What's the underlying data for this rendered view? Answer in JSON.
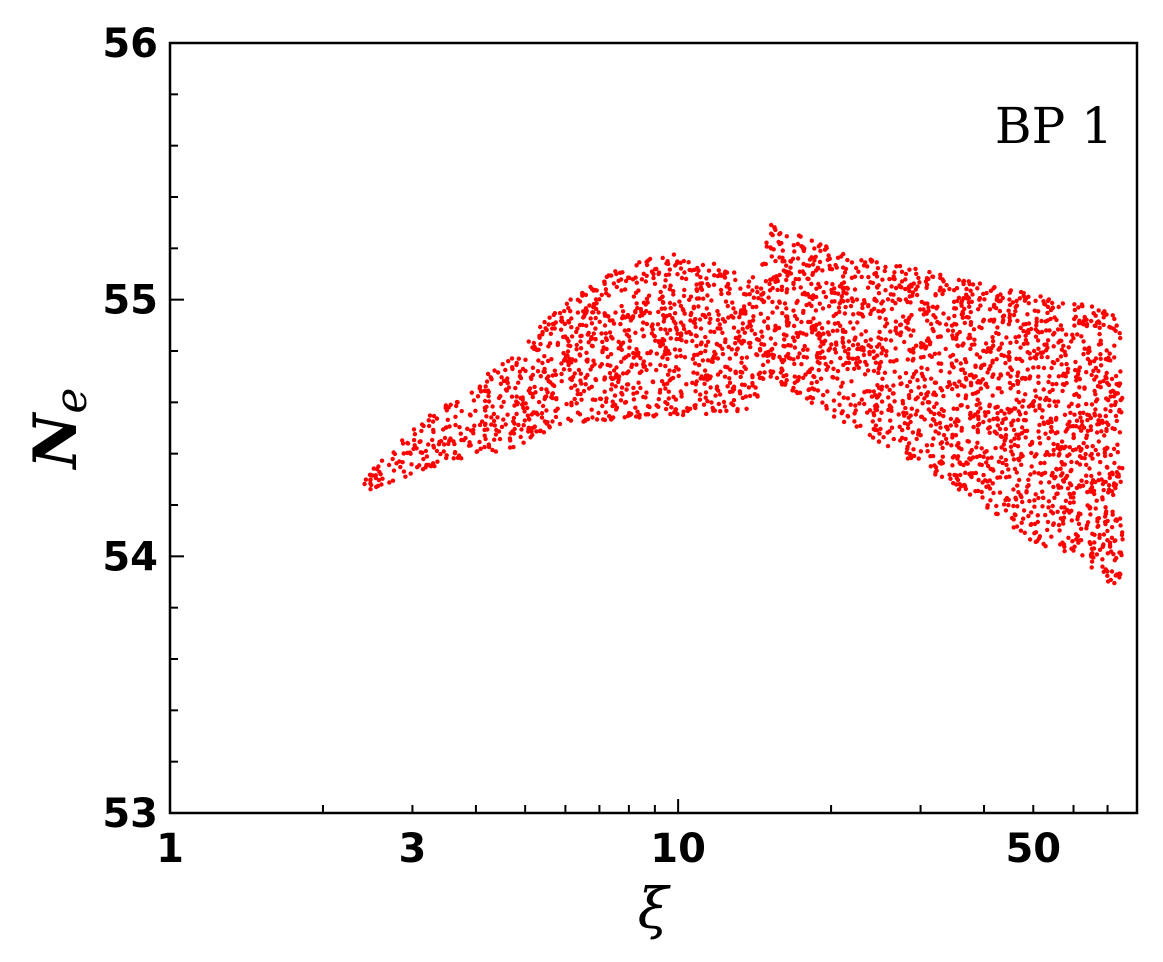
{
  "chart_data": {
    "type": "scatter",
    "annotation": "BP 1",
    "xlabel": "ξ",
    "ylabel": "N",
    "ylabel_sub": "e",
    "xscale": "log",
    "xlim": [
      1,
      80
    ],
    "ylim": [
      53,
      56
    ],
    "xticks": [
      {
        "value": 1,
        "label": "1"
      },
      {
        "value": 3,
        "label": "3"
      },
      {
        "value": 10,
        "label": "10"
      },
      {
        "value": 50,
        "label": "50"
      }
    ],
    "yticks": [
      {
        "value": 53,
        "label": "53"
      },
      {
        "value": 54,
        "label": "54"
      },
      {
        "value": 55,
        "label": "55"
      },
      {
        "value": 56,
        "label": "56"
      }
    ],
    "grid": false,
    "marker_color": "#ff0000",
    "region_boundary": [
      [
        2.4,
        54.3
      ],
      [
        3.0,
        54.5
      ],
      [
        4.5,
        54.75
      ],
      [
        6.0,
        55.0
      ],
      [
        8.0,
        55.15
      ],
      [
        10.0,
        55.18
      ],
      [
        14.0,
        55.1
      ],
      [
        15.0,
        55.3
      ],
      [
        20.0,
        55.2
      ],
      [
        30.0,
        55.12
      ],
      [
        50.0,
        55.02
      ],
      [
        75.0,
        54.95
      ],
      [
        75.0,
        53.85
      ],
      [
        60.0,
        54.0
      ],
      [
        50.0,
        54.05
      ],
      [
        40.0,
        54.2
      ],
      [
        30.0,
        54.35
      ],
      [
        20.0,
        54.55
      ],
      [
        15.0,
        54.7
      ],
      [
        14.0,
        54.55
      ],
      [
        10.0,
        54.55
      ],
      [
        6.0,
        54.52
      ],
      [
        4.5,
        54.4
      ],
      [
        3.0,
        54.32
      ],
      [
        2.4,
        54.25
      ]
    ],
    "point_count": 3200
  }
}
